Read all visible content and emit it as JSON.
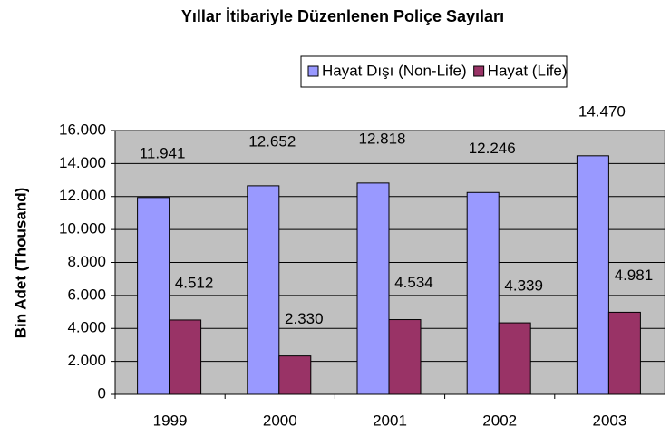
{
  "chart_data": {
    "type": "bar",
    "title": "Yıllar İtibariyle Düzenlenen Poliçe Sayıları",
    "y_label": "Bin Adet (Thousand)",
    "categories": [
      "1999",
      "2000",
      "2001",
      "2002",
      "2003"
    ],
    "series": [
      {
        "name": "Hayat Dışı (Non-Life)",
        "color": "#9999ff",
        "values": [
          11941,
          12652,
          12818,
          12246,
          14470
        ],
        "value_labels": [
          "11.941",
          "12.652",
          "12.818",
          "12.246",
          "14.470"
        ]
      },
      {
        "name": "Hayat (Life)",
        "color": "#993366",
        "values": [
          4512,
          2330,
          4534,
          4339,
          4981
        ],
        "value_labels": [
          "4.512",
          "2.330",
          "4.534",
          "4.339",
          "4.981"
        ]
      }
    ],
    "ylim": [
      0,
      16000
    ],
    "yticks": [
      0,
      {
        "value": 2000,
        "label": "2.000"
      },
      {
        "value": 4000,
        "label": "4.000"
      },
      {
        "value": 6000,
        "label": "6.000"
      },
      {
        "value": 8000,
        "label": "8.000"
      },
      {
        "value": 10000,
        "label": "10.000"
      },
      {
        "value": 12000,
        "label": "12.000"
      },
      {
        "value": 14000,
        "label": "14.000"
      },
      {
        "value": 16000,
        "label": "16.000"
      }
    ],
    "grid": true,
    "plot_background": "#c0c0c0",
    "legend": "top"
  }
}
